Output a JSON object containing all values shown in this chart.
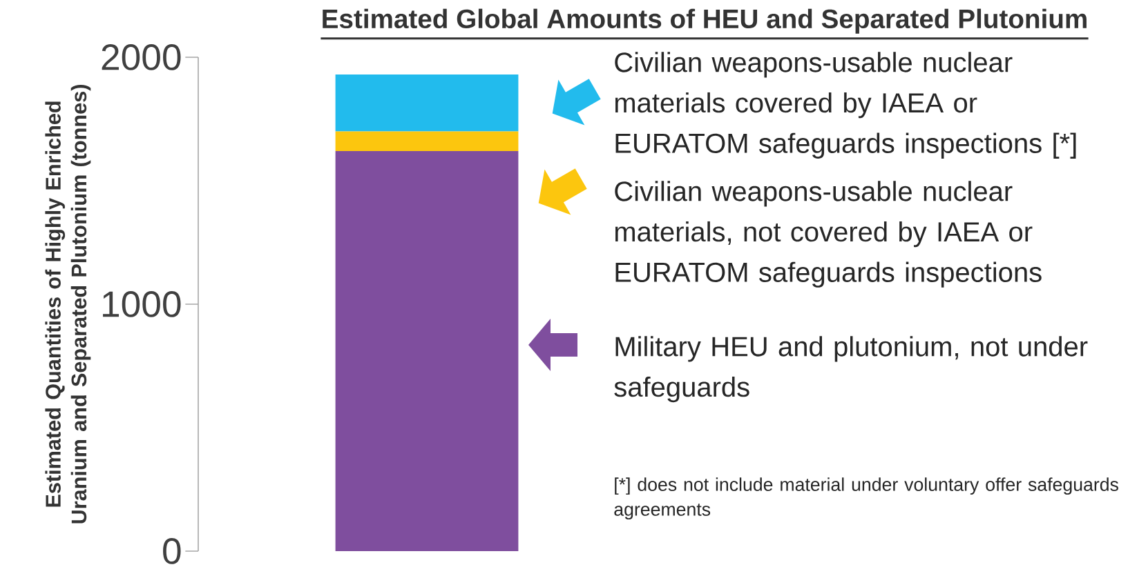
{
  "chart_data": {
    "type": "bar",
    "title": "Estimated Global Amounts of HEU and Separated Plutonium",
    "ylabel": "Estimated Quantities of Highly Enriched Uranium and Separated Plutonium (tonnes)",
    "categories": [
      null
    ],
    "stacked": true,
    "ylim": [
      0,
      2000
    ],
    "yticks": [
      0,
      1000,
      2000
    ],
    "tick_labels": "y",
    "legend": "right",
    "series": [
      {
        "name": "Military HEU and plutonium, not under safeguards",
        "color": "#7f4e9e",
        "values": [
          1620
        ]
      },
      {
        "name": "Civilian weapons-usable nuclear materials, not covered by IAEA or EURATOM safeguards inspections",
        "color": "#fcc60e",
        "values": [
          80
        ]
      },
      {
        "name": "Civilian weapons-usable nuclear materials covered by IAEA or EURATOM safeguards inspections [*]",
        "color": "#22bbed",
        "values": [
          230
        ]
      }
    ],
    "annotations": [
      "[*] does not include material under voluntary offer safeguards agreements"
    ]
  }
}
